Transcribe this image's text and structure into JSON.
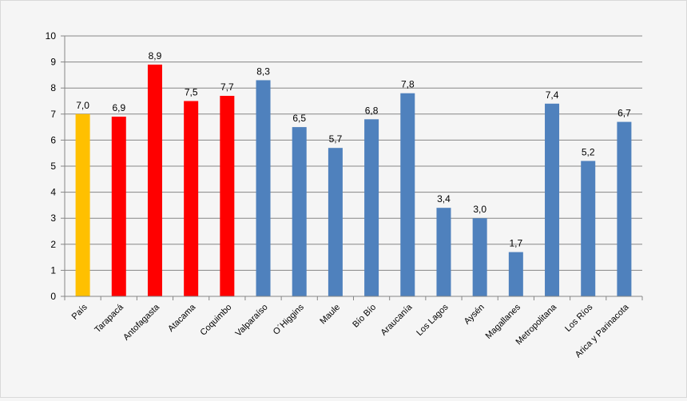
{
  "chart_data": {
    "type": "bar",
    "title": "",
    "xlabel": "",
    "ylabel": "",
    "ylim": [
      0,
      10
    ],
    "yticks": [
      0,
      1,
      2,
      3,
      4,
      5,
      6,
      7,
      8,
      9,
      10
    ],
    "grid": true,
    "legend": "none",
    "categories": [
      "País",
      "Tarapacá",
      "Antofagasta",
      "Atacama",
      "Coquimbo",
      "Valparaíso",
      "O´Higgins",
      "Maule",
      "Bío Bío",
      "Araucanía",
      "Los Lagos",
      "Aysén",
      "Magallanes",
      "Metropolitana",
      "Los Ríos",
      "Arica y Parinacota"
    ],
    "values": [
      7.0,
      6.9,
      8.9,
      7.5,
      7.7,
      8.3,
      6.5,
      5.7,
      6.8,
      7.8,
      3.4,
      3.0,
      1.7,
      7.4,
      5.2,
      6.7
    ],
    "data_labels": [
      "7,0",
      "6,9",
      "8,9",
      "7,5",
      "7,7",
      "8,3",
      "6,5",
      "5,7",
      "6,8",
      "7,8",
      "3,4",
      "3,0",
      "1,7",
      "7,4",
      "5,2",
      "6,7"
    ],
    "bar_colors": [
      "#FFC000",
      "#FF0000",
      "#FF0000",
      "#FF0000",
      "#FF0000",
      "#4F81BD",
      "#4F81BD",
      "#4F81BD",
      "#4F81BD",
      "#4F81BD",
      "#4F81BD",
      "#4F81BD",
      "#4F81BD",
      "#4F81BD",
      "#4F81BD",
      "#4F81BD"
    ],
    "colors": {
      "background": "#f5f5f5",
      "grid": "#868686",
      "axis": "#868686"
    }
  }
}
